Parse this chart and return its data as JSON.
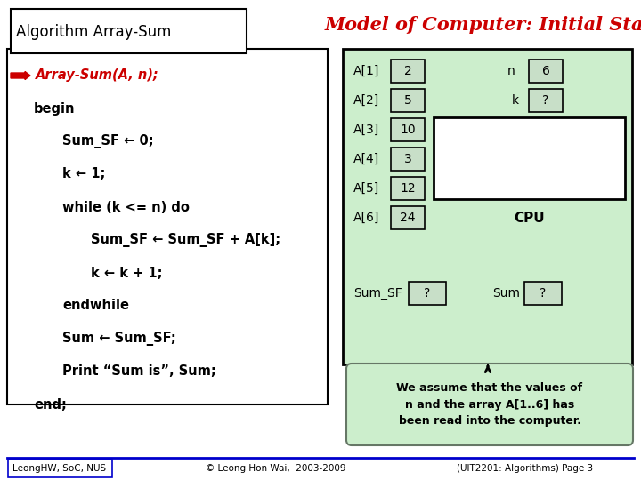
{
  "bg_color": "#ffffff",
  "title": "Model of Computer: Initial State",
  "title_color": "#cc0000",
  "algo_box_title": "Algorithm Array-Sum",
  "algo_lines": [
    {
      "text": "Array-Sum(A, n);",
      "indent": 0,
      "color": "#cc0000",
      "bold": true,
      "italic": true,
      "arrow": true
    },
    {
      "text": "begin",
      "indent": 0,
      "color": "#000000",
      "bold": true,
      "italic": false,
      "arrow": false
    },
    {
      "text": "Sum_SF ← 0;",
      "indent": 2,
      "color": "#000000",
      "bold": true,
      "italic": false,
      "arrow": false
    },
    {
      "text": "k ← 1;",
      "indent": 2,
      "color": "#000000",
      "bold": true,
      "italic": false,
      "arrow": false
    },
    {
      "text": "while (k <= n) do",
      "indent": 2,
      "color": "#000000",
      "bold": true,
      "italic": false,
      "arrow": false
    },
    {
      "text": "Sum_SF ← Sum_SF + A[k];",
      "indent": 4,
      "color": "#000000",
      "bold": true,
      "italic": false,
      "arrow": false
    },
    {
      "text": "k ← k + 1;",
      "indent": 4,
      "color": "#000000",
      "bold": true,
      "italic": false,
      "arrow": false
    },
    {
      "text": "endwhile",
      "indent": 2,
      "color": "#000000",
      "bold": true,
      "italic": false,
      "arrow": false
    },
    {
      "text": "Sum ← Sum_SF;",
      "indent": 2,
      "color": "#000000",
      "bold": true,
      "italic": false,
      "arrow": false
    },
    {
      "text": "Print “Sum is”, Sum;",
      "indent": 2,
      "color": "#000000",
      "bold": true,
      "italic": false,
      "arrow": false
    },
    {
      "text": "end;",
      "indent": 0,
      "color": "#000000",
      "bold": true,
      "italic": false,
      "arrow": false
    }
  ],
  "computer_bg": "#cceecc",
  "array_labels": [
    "A[1]",
    "A[2]",
    "A[3]",
    "A[4]",
    "A[5]",
    "A[6]"
  ],
  "array_values": [
    "2",
    "5",
    "10",
    "3",
    "12",
    "24"
  ],
  "n_label": "n",
  "n_value": "6",
  "k_label": "k",
  "k_value": "?",
  "sum_sf_label": "Sum_SF",
  "sum_sf_value": "?",
  "sum_label": "Sum",
  "sum_value": "?",
  "note_bg": "#cceecc",
  "note_text": "We assume that the values of\nn and the array A[1..6] has\nbeen read into the computer.",
  "footer_left": "LeongHW, SoC, NUS",
  "footer_center": "© Leong Hon Wai,  2003-2009",
  "footer_right": "(UIT2201: Algorithms) Page 3",
  "cell_bg": "#c8dfc8",
  "cell_border": "#000000"
}
